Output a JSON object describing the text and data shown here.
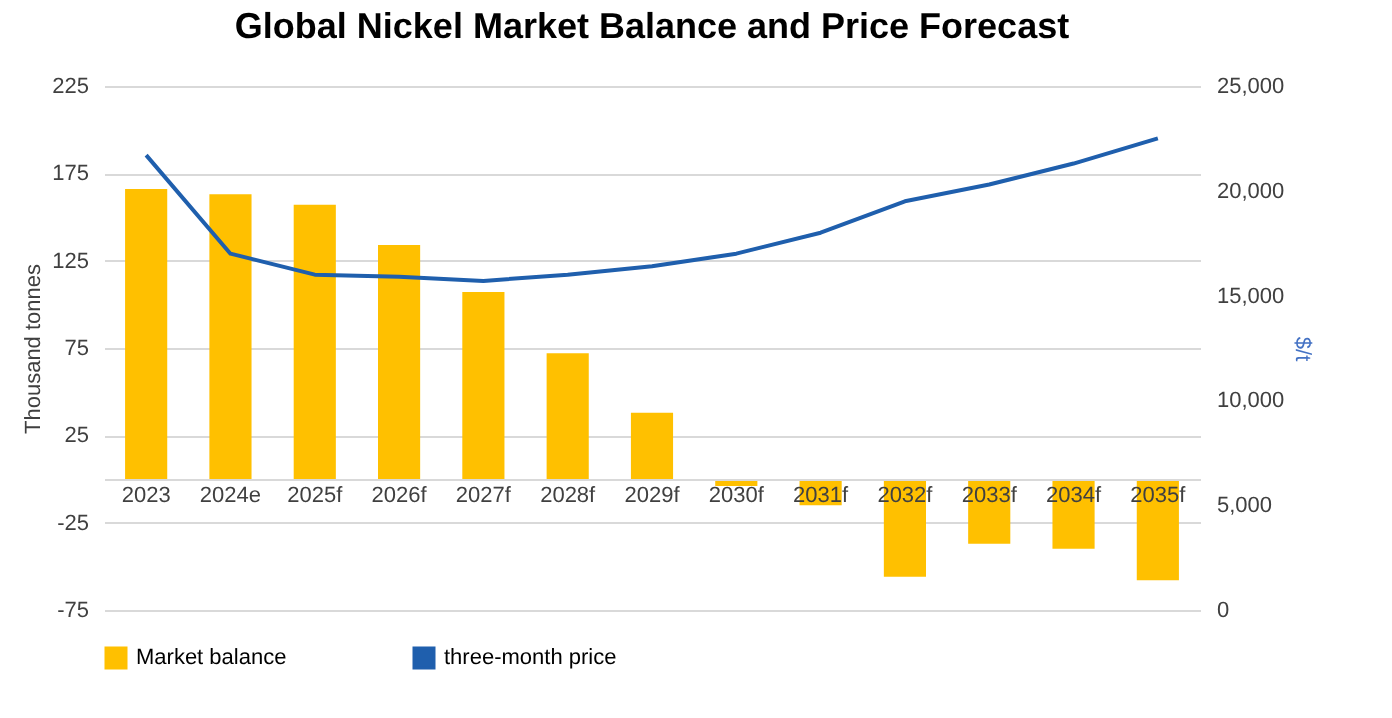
{
  "chart_data": {
    "type": "bar",
    "title": "Global Nickel Market Balance and Price Forecast",
    "ylabel": "Thousand tonnes",
    "y2label": "$/t",
    "categories": [
      "2023",
      "2024e",
      "2025f",
      "2026f",
      "2027f",
      "2028f",
      "2029f",
      "2030f",
      "2031f",
      "2032f",
      "2033f",
      "2034f",
      "2035f"
    ],
    "series": [
      {
        "name": "Market balance",
        "color": "#ffc000",
        "values": [
          166,
          163,
          157,
          134,
          107,
          72,
          38,
          -4,
          -15,
          -56,
          -37,
          -40,
          -58
        ]
      },
      {
        "name": "three-month price",
        "type": "line",
        "axis": "y2",
        "color": "#1f5fad",
        "values": [
          21700,
          17000,
          16000,
          15900,
          15700,
          16000,
          16400,
          17000,
          18000,
          19500,
          20300,
          21300,
          22500
        ]
      }
    ],
    "ylim": [
      -75,
      225
    ],
    "yticks": [
      -75,
      -25,
      25,
      75,
      125,
      175,
      225
    ],
    "y2lim": [
      0,
      25000
    ],
    "y2ticks": [
      0,
      {
        "value": 5000,
        "label": "5,000"
      },
      {
        "value": 10000,
        "label": "10,000"
      },
      {
        "value": 15000,
        "label": "15,000"
      },
      {
        "value": 20000,
        "label": "20,000"
      },
      {
        "value": 25000,
        "label": "25,000"
      }
    ],
    "grid": "y",
    "legend": "bottom"
  }
}
